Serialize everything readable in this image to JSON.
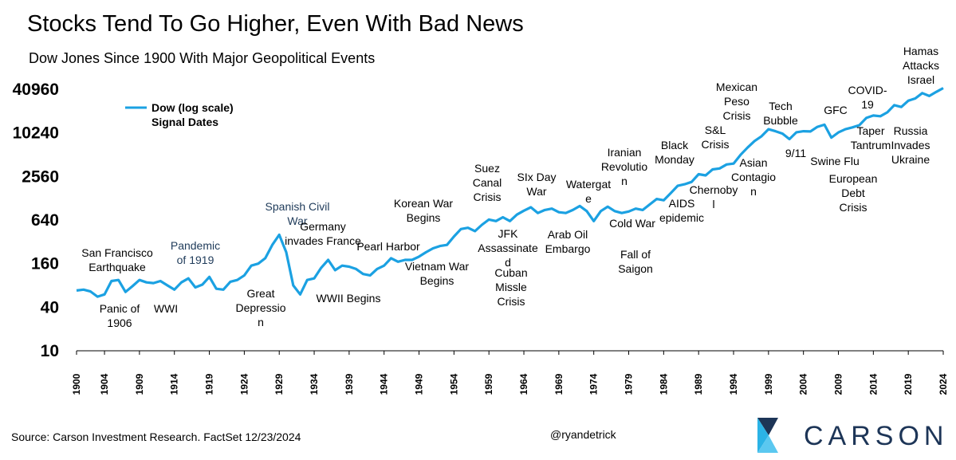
{
  "chart_data": {
    "type": "line",
    "title": "Stocks Tend To Go Higher, Even With Bad News",
    "subtitle": "Dow Jones Since 1900 With Major Geopolitical Events",
    "y_scale": "log",
    "ylim": [
      10,
      40960
    ],
    "y_ticks": [
      "40960",
      "10240",
      "2560",
      "640",
      "160",
      "40",
      "10"
    ],
    "y_tick_values": [
      40960,
      10240,
      2560,
      640,
      160,
      40,
      10
    ],
    "xlim": [
      1900,
      2024
    ],
    "x_ticks": [
      "1900",
      "1904",
      "1909",
      "1914",
      "1919",
      "1924",
      "1929",
      "1934",
      "1939",
      "1944",
      "1949",
      "1954",
      "1959",
      "1964",
      "1969",
      "1974",
      "1979",
      "1984",
      "1989",
      "1994",
      "1999",
      "2004",
      "2009",
      "2014",
      "2019",
      "2024"
    ],
    "x_tick_values": [
      1900,
      1904,
      1909,
      1914,
      1919,
      1924,
      1929,
      1934,
      1939,
      1944,
      1949,
      1954,
      1959,
      1964,
      1969,
      1974,
      1979,
      1984,
      1989,
      1994,
      1999,
      2004,
      2009,
      2014,
      2019,
      2024
    ],
    "legend": [
      "Dow (log scale)",
      "Signal Dates"
    ],
    "legend_position": "top-left",
    "series": [
      {
        "name": "Dow (log scale)",
        "color": "#1ba1e2",
        "x": [
          1900,
          1901,
          1902,
          1903,
          1904,
          1905,
          1906,
          1907,
          1908,
          1909,
          1910,
          1911,
          1912,
          1913,
          1914,
          1915,
          1916,
          1917,
          1918,
          1919,
          1920,
          1921,
          1922,
          1923,
          1924,
          1925,
          1926,
          1927,
          1928,
          1929,
          1930,
          1931,
          1932,
          1933,
          1934,
          1935,
          1936,
          1937,
          1938,
          1939,
          1940,
          1941,
          1942,
          1943,
          1944,
          1945,
          1946,
          1947,
          1948,
          1949,
          1950,
          1951,
          1952,
          1953,
          1954,
          1955,
          1956,
          1957,
          1958,
          1959,
          1960,
          1961,
          1962,
          1963,
          1964,
          1965,
          1966,
          1967,
          1968,
          1969,
          1970,
          1971,
          1972,
          1973,
          1974,
          1975,
          1976,
          1977,
          1978,
          1979,
          1980,
          1981,
          1982,
          1983,
          1984,
          1985,
          1986,
          1987,
          1988,
          1989,
          1990,
          1991,
          1992,
          1993,
          1994,
          1995,
          1996,
          1997,
          1998,
          1999,
          2000,
          2001,
          2002,
          2003,
          2004,
          2005,
          2006,
          2007,
          2008,
          2009,
          2010,
          2011,
          2012,
          2013,
          2014,
          2015,
          2016,
          2017,
          2018,
          2019,
          2020,
          2021,
          2022,
          2023,
          2024
        ],
        "values": [
          68,
          70,
          66,
          56,
          60,
          92,
          95,
          65,
          78,
          95,
          88,
          86,
          92,
          80,
          70,
          88,
          100,
          75,
          82,
          105,
          72,
          70,
          90,
          95,
          110,
          150,
          160,
          190,
          290,
          400,
          230,
          80,
          60,
          95,
          100,
          140,
          180,
          130,
          150,
          145,
          135,
          115,
          110,
          135,
          150,
          190,
          170,
          180,
          180,
          200,
          230,
          260,
          280,
          290,
          380,
          480,
          500,
          450,
          550,
          650,
          620,
          700,
          620,
          760,
          860,
          960,
          800,
          880,
          920,
          820,
          800,
          880,
          1000,
          850,
          620,
          850,
          980,
          850,
          800,
          840,
          920,
          880,
          1050,
          1250,
          1200,
          1500,
          1900,
          2000,
          2150,
          2750,
          2650,
          3200,
          3300,
          3750,
          3850,
          5100,
          6400,
          7900,
          9200,
          11500,
          10800,
          10000,
          8400,
          10450,
          10800,
          10700,
          12400,
          13300,
          8800,
          10400,
          11500,
          12200,
          13100,
          16500,
          17800,
          17400,
          19700,
          24700,
          23300,
          28500,
          30600,
          36300,
          33100,
          37700,
          42500
        ]
      }
    ],
    "annotations": [
      {
        "lines": [
          "San Francisco",
          "Earthquake"
        ],
        "year": 1906
      },
      {
        "lines": [
          "Panic of",
          "1906"
        ],
        "year": 1907
      },
      {
        "lines": [
          "WWI"
        ],
        "year": 1914
      },
      {
        "lines": [
          "Pandemic",
          "of 1919"
        ],
        "year": 1919
      },
      {
        "lines": [
          "Great",
          "Depressio",
          "n"
        ],
        "year": 1929
      },
      {
        "lines": [
          "Spanish Civil",
          "War"
        ],
        "year": 1936
      },
      {
        "lines": [
          "Germany",
          "invades France"
        ],
        "year": 1940
      },
      {
        "lines": [
          "WWII Begins"
        ],
        "year": 1939
      },
      {
        "lines": [
          "Pearl Harbor"
        ],
        "year": 1941
      },
      {
        "lines": [
          "Korean War",
          "Begins"
        ],
        "year": 1950
      },
      {
        "lines": [
          "Vietnam War",
          "Begins"
        ],
        "year": 1955
      },
      {
        "lines": [
          "Suez",
          "Canal",
          "Crisis"
        ],
        "year": 1956
      },
      {
        "lines": [
          "JFK",
          "Assassinate",
          "d"
        ],
        "year": 1963
      },
      {
        "lines": [
          "Cuban",
          "Missle",
          "Crisis"
        ],
        "year": 1962
      },
      {
        "lines": [
          "SIx Day",
          "War"
        ],
        "year": 1967
      },
      {
        "lines": [
          "Arab Oil",
          "Embargo"
        ],
        "year": 1973
      },
      {
        "lines": [
          "Watergat",
          "e"
        ],
        "year": 1974
      },
      {
        "lines": [
          "Iranian",
          "Revolutio",
          "n"
        ],
        "year": 1979
      },
      {
        "lines": [
          "Fall of",
          "Saigon"
        ],
        "year": 1975
      },
      {
        "lines": [
          "Cold War"
        ],
        "year": 1980
      },
      {
        "lines": [
          "Black",
          "Monday"
        ],
        "year": 1987
      },
      {
        "lines": [
          "AIDS",
          "epidemic"
        ],
        "year": 1984
      },
      {
        "lines": [
          "S&L",
          "Crisis"
        ],
        "year": 1989
      },
      {
        "lines": [
          "Chernoby",
          "l"
        ],
        "year": 1986
      },
      {
        "lines": [
          "Mexican",
          "Peso",
          "Crisis"
        ],
        "year": 1994
      },
      {
        "lines": [
          "Asian",
          "Contagio",
          "n"
        ],
        "year": 1997
      },
      {
        "lines": [
          "Tech",
          "Bubble"
        ],
        "year": 2000
      },
      {
        "lines": [
          "9/11"
        ],
        "year": 2001
      },
      {
        "lines": [
          "GFC"
        ],
        "year": 2008
      },
      {
        "lines": [
          "Swine Flu"
        ],
        "year": 2009
      },
      {
        "lines": [
          "European",
          "Debt",
          "Crisis"
        ],
        "year": 2011
      },
      {
        "lines": [
          "COVID-",
          "19"
        ],
        "year": 2020
      },
      {
        "lines": [
          "Taper",
          "Tantrum"
        ],
        "year": 2013
      },
      {
        "lines": [
          "Hamas",
          "Attacks",
          "Israel"
        ],
        "year": 2023
      },
      {
        "lines": [
          "Russia",
          "Invades",
          "Ukraine"
        ],
        "year": 2022
      }
    ]
  },
  "footer": {
    "source": "Source: Carson Investment Research. FactSet 12/23/2024",
    "handle": "@ryandetrick",
    "logo_text": "CARSON",
    "logo_colors": [
      "#1d3557",
      "#2bb3e6",
      "#5bc8f0"
    ]
  }
}
